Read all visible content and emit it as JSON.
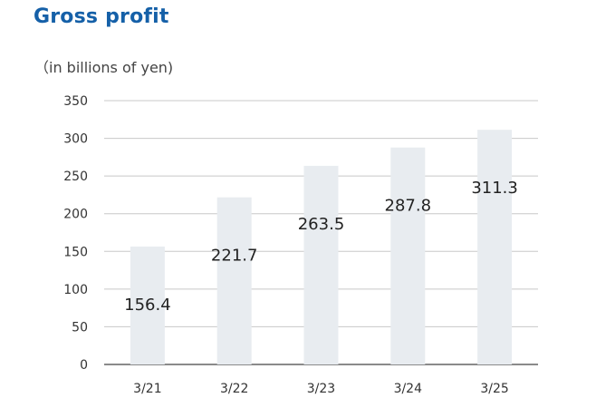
{
  "chart_data": {
    "type": "bar",
    "title": "Gross profit",
    "unit_label": "（in billions of yen)",
    "categories": [
      "3/21",
      "3/22",
      "3/23",
      "3/24",
      "3/25"
    ],
    "values": [
      156.4,
      221.7,
      263.5,
      287.8,
      311.3
    ],
    "data_labels": [
      "156.4",
      "221.7",
      "263.5",
      "287.8",
      "311.3"
    ],
    "y_ticks": [
      0,
      50,
      100,
      150,
      200,
      250,
      300,
      350
    ],
    "ylim": [
      0,
      350
    ],
    "grid": true,
    "bar_color": "#e8ecf0",
    "grid_color": "#c8c8c8"
  }
}
